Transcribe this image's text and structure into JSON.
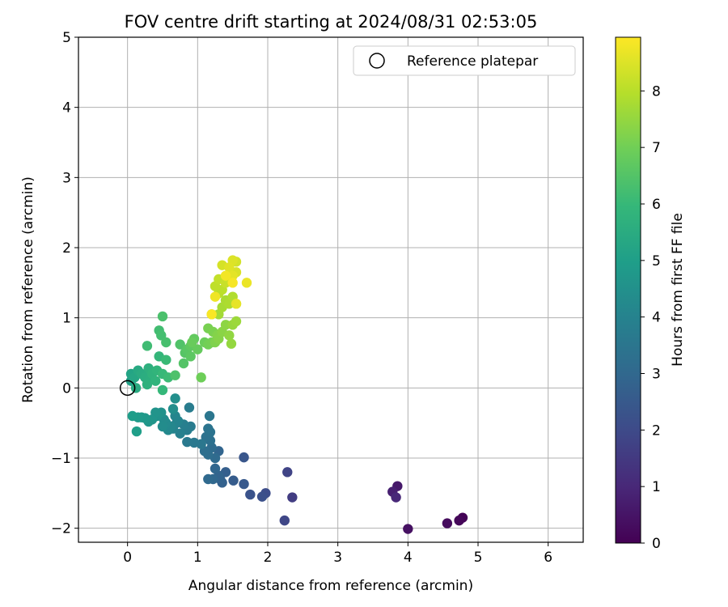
{
  "chart_data": {
    "type": "scatter",
    "title": "FOV centre drift starting at 2024/08/31 02:53:05",
    "xlabel": "Angular distance from reference (arcmin)",
    "ylabel": "Rotation from reference (arcmin)",
    "xlim": [
      -0.7,
      6.5
    ],
    "ylim": [
      -2.2,
      5.0
    ],
    "xticks": [
      "0",
      "1",
      "2",
      "3",
      "4",
      "5",
      "6"
    ],
    "yticks": [
      "−2",
      "−1",
      "0",
      "1",
      "2",
      "3",
      "4",
      "5"
    ],
    "grid": true,
    "legend": {
      "position": "top-right",
      "label": "Reference platepar"
    },
    "reference_point": {
      "x": 0,
      "y": 0
    },
    "colorbar": {
      "label": "Hours from first FF file",
      "range": [
        0,
        8.95
      ],
      "ticks": [
        "0",
        "1",
        "2",
        "3",
        "4",
        "5",
        "6",
        "7",
        "8"
      ],
      "colormap": "viridis"
    },
    "points": [
      [
        4.78,
        -1.85,
        0.05
      ],
      [
        4.73,
        -1.89,
        0.15
      ],
      [
        4.56,
        -1.93,
        0.25
      ],
      [
        4.0,
        -2.01,
        0.4
      ],
      [
        3.85,
        -1.4,
        0.6
      ],
      [
        3.78,
        -1.48,
        0.8
      ],
      [
        3.83,
        -1.56,
        1.0
      ],
      [
        2.35,
        -1.56,
        1.6
      ],
      [
        2.28,
        -1.2,
        1.8
      ],
      [
        2.24,
        -1.89,
        1.9
      ],
      [
        1.97,
        -1.5,
        2.1
      ],
      [
        1.92,
        -1.55,
        2.2
      ],
      [
        1.75,
        -1.52,
        2.3
      ],
      [
        1.66,
        -0.99,
        2.4
      ],
      [
        1.66,
        -1.37,
        2.5
      ],
      [
        1.51,
        -1.32,
        2.6
      ],
      [
        1.4,
        -1.2,
        2.7
      ],
      [
        1.35,
        -1.35,
        2.75
      ],
      [
        1.32,
        -1.3,
        2.8
      ],
      [
        1.3,
        -1.25,
        2.85
      ],
      [
        1.3,
        -0.9,
        2.9
      ],
      [
        1.25,
        -1.15,
        2.95
      ],
      [
        1.22,
        -1.3,
        3.0
      ],
      [
        1.15,
        -1.3,
        3.05
      ],
      [
        1.25,
        -1.0,
        3.1
      ],
      [
        1.2,
        -0.85,
        3.15
      ],
      [
        1.15,
        -0.95,
        3.2
      ],
      [
        1.1,
        -0.9,
        3.25
      ],
      [
        1.18,
        -0.75,
        3.3
      ],
      [
        1.12,
        -0.7,
        3.35
      ],
      [
        1.18,
        -0.63,
        3.4
      ],
      [
        1.15,
        -0.58,
        3.45
      ],
      [
        1.17,
        -0.4,
        3.5
      ],
      [
        1.05,
        -0.8,
        3.55
      ],
      [
        0.95,
        -0.78,
        3.6
      ],
      [
        0.85,
        -0.77,
        3.65
      ],
      [
        0.9,
        -0.55,
        3.7
      ],
      [
        0.88,
        -0.28,
        3.75
      ],
      [
        0.85,
        -0.6,
        3.8
      ],
      [
        0.8,
        -0.52,
        3.85
      ],
      [
        0.75,
        -0.65,
        3.9
      ],
      [
        0.7,
        -0.5,
        3.95
      ],
      [
        0.65,
        -0.58,
        4.0
      ],
      [
        0.72,
        -0.47,
        4.05
      ],
      [
        0.68,
        -0.4,
        4.1
      ],
      [
        0.62,
        -0.55,
        4.15
      ],
      [
        0.58,
        -0.6,
        4.2
      ],
      [
        0.55,
        -0.5,
        4.25
      ],
      [
        0.52,
        -0.45,
        4.3
      ],
      [
        0.5,
        -0.55,
        4.35
      ],
      [
        0.65,
        -0.3,
        4.4
      ],
      [
        0.68,
        -0.15,
        4.45
      ],
      [
        0.48,
        -0.35,
        4.5
      ],
      [
        0.42,
        -0.4,
        4.55
      ],
      [
        0.4,
        -0.35,
        4.6
      ],
      [
        0.35,
        -0.45,
        4.65
      ],
      [
        0.3,
        -0.48,
        4.7
      ],
      [
        0.25,
        -0.43,
        4.75
      ],
      [
        0.2,
        -0.42,
        4.8
      ],
      [
        0.15,
        -0.42,
        4.85
      ],
      [
        0.07,
        -0.4,
        4.95
      ],
      [
        0.13,
        -0.62,
        5.0
      ],
      [
        0.05,
        0.1,
        5.1
      ],
      [
        0.05,
        0.2,
        5.2
      ],
      [
        0.1,
        0.15,
        5.3
      ],
      [
        0.15,
        0.25,
        5.4
      ],
      [
        0.12,
        0.0,
        5.45
      ],
      [
        0.2,
        0.2,
        5.5
      ],
      [
        0.25,
        0.15,
        5.55
      ],
      [
        0.3,
        0.1,
        5.6
      ],
      [
        0.3,
        0.28,
        5.65
      ],
      [
        0.28,
        0.05,
        5.7
      ],
      [
        0.35,
        0.2,
        5.75
      ],
      [
        0.4,
        0.1,
        5.8
      ],
      [
        0.42,
        0.25,
        5.85
      ],
      [
        0.45,
        0.45,
        5.9
      ],
      [
        0.5,
        -0.03,
        5.95
      ],
      [
        0.5,
        0.2,
        6.0
      ],
      [
        0.55,
        0.4,
        6.05
      ],
      [
        0.58,
        0.15,
        6.1
      ],
      [
        0.28,
        0.6,
        6.15
      ],
      [
        0.45,
        0.82,
        6.2
      ],
      [
        0.48,
        0.75,
        6.25
      ],
      [
        0.55,
        0.65,
        6.3
      ],
      [
        0.5,
        1.02,
        6.35
      ],
      [
        0.68,
        0.18,
        6.4
      ],
      [
        0.75,
        0.62,
        6.45
      ],
      [
        0.8,
        0.35,
        6.5
      ],
      [
        0.82,
        0.5,
        6.55
      ],
      [
        0.85,
        0.55,
        6.6
      ],
      [
        0.9,
        0.45,
        6.65
      ],
      [
        0.9,
        0.6,
        6.7
      ],
      [
        0.95,
        0.7,
        6.75
      ],
      [
        1.0,
        0.55,
        6.8
      ],
      [
        0.92,
        0.65,
        6.85
      ],
      [
        1.1,
        0.65,
        6.9
      ],
      [
        1.05,
        0.15,
        6.95
      ],
      [
        1.15,
        0.62,
        7.0
      ],
      [
        1.2,
        0.65,
        7.05
      ],
      [
        1.15,
        0.85,
        7.1
      ],
      [
        1.22,
        0.8,
        7.15
      ],
      [
        1.25,
        0.65,
        7.2
      ],
      [
        1.28,
        0.75,
        7.25
      ],
      [
        1.3,
        0.7,
        7.3
      ],
      [
        1.35,
        0.8,
        7.35
      ],
      [
        1.4,
        0.9,
        7.4
      ],
      [
        1.45,
        0.75,
        7.45
      ],
      [
        1.48,
        0.63,
        7.5
      ],
      [
        1.5,
        0.9,
        7.55
      ],
      [
        1.55,
        0.95,
        7.6
      ],
      [
        1.2,
        1.05,
        7.65
      ],
      [
        1.3,
        1.05,
        7.7
      ],
      [
        1.35,
        1.15,
        7.75
      ],
      [
        1.4,
        1.25,
        7.8
      ],
      [
        1.45,
        1.2,
        7.85
      ],
      [
        1.5,
        1.3,
        7.9
      ],
      [
        1.55,
        1.2,
        7.95
      ],
      [
        1.3,
        1.35,
        8.0
      ],
      [
        1.35,
        1.4,
        8.05
      ],
      [
        1.25,
        1.45,
        8.1
      ],
      [
        1.3,
        1.55,
        8.15
      ],
      [
        1.4,
        1.5,
        8.2
      ],
      [
        1.45,
        1.55,
        8.25
      ],
      [
        1.5,
        1.65,
        8.3
      ],
      [
        1.55,
        1.8,
        8.35
      ],
      [
        1.35,
        1.75,
        8.4
      ],
      [
        1.55,
        1.65,
        8.45
      ],
      [
        1.5,
        1.82,
        8.5
      ],
      [
        1.45,
        1.72,
        8.55
      ],
      [
        1.5,
        1.6,
        8.6
      ],
      [
        1.55,
        1.2,
        8.65
      ],
      [
        1.7,
        1.5,
        8.7
      ],
      [
        1.25,
        1.3,
        8.75
      ],
      [
        1.4,
        1.6,
        8.8
      ],
      [
        1.5,
        1.5,
        8.85
      ],
      [
        1.2,
        1.05,
        8.9
      ]
    ]
  }
}
